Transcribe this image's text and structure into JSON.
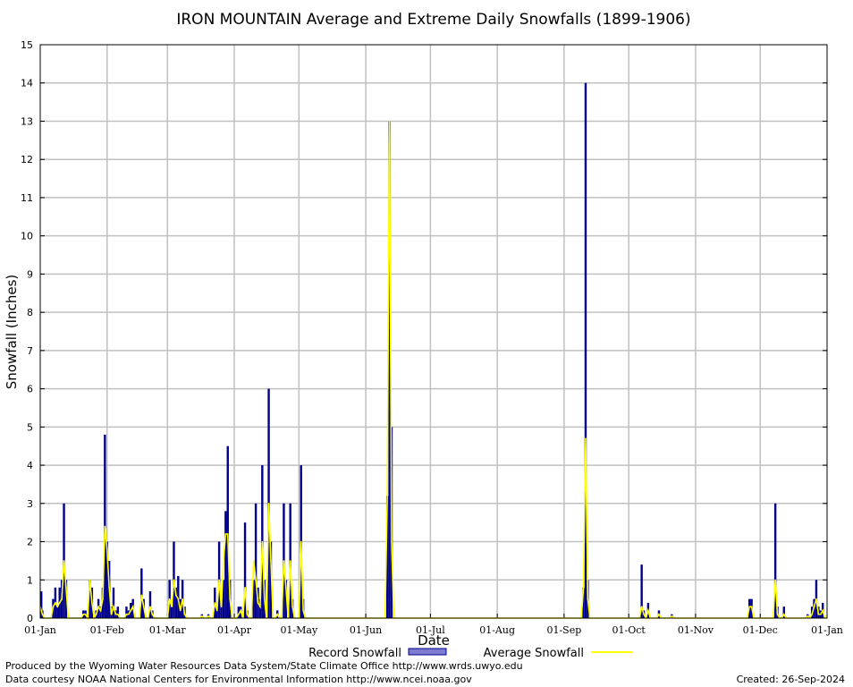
{
  "chart_data": {
    "type": "bar",
    "title": "IRON MOUNTAIN Average and Extreme Daily Snowfalls (1899-1906)",
    "xlabel": "Date",
    "ylabel": "Snowfall (Inches)",
    "ylim": [
      0,
      15
    ],
    "yticks": [
      0,
      1,
      2,
      3,
      4,
      5,
      6,
      7,
      8,
      9,
      10,
      11,
      12,
      13,
      14,
      15
    ],
    "xticks": [
      "01-Jan",
      "01-Feb",
      "01-Mar",
      "01-Apr",
      "01-May",
      "01-Jun",
      "01-Jul",
      "01-Aug",
      "01-Sep",
      "01-Oct",
      "01-Nov",
      "01-Dec",
      "01-Jan"
    ],
    "xtick_days": [
      1,
      32,
      60,
      91,
      121,
      152,
      182,
      213,
      244,
      274,
      305,
      335,
      366
    ],
    "xlim_days": [
      1,
      366
    ],
    "grid": true,
    "legend_position": "bottom",
    "series": [
      {
        "name": "Record Snowfall",
        "style": "bars",
        "color": "#00008b",
        "points": [
          [
            1,
            0.7
          ],
          [
            2,
            0.2
          ],
          [
            7,
            0.5
          ],
          [
            8,
            0.8
          ],
          [
            9,
            0.3
          ],
          [
            10,
            0.8
          ],
          [
            11,
            1.0
          ],
          [
            12,
            3.0
          ],
          [
            13,
            1.0
          ],
          [
            21,
            0.2
          ],
          [
            22,
            0.2
          ],
          [
            24,
            1.0
          ],
          [
            25,
            0.8
          ],
          [
            27,
            0.2
          ],
          [
            28,
            0.5
          ],
          [
            29,
            0.3
          ],
          [
            30,
            0.8
          ],
          [
            31,
            4.8
          ],
          [
            32,
            2.0
          ],
          [
            33,
            1.5
          ],
          [
            34,
            0.3
          ],
          [
            35,
            0.8
          ],
          [
            36,
            0.2
          ],
          [
            37,
            0.3
          ],
          [
            41,
            0.3
          ],
          [
            42,
            0.2
          ],
          [
            43,
            0.4
          ],
          [
            44,
            0.5
          ],
          [
            48,
            1.3
          ],
          [
            49,
            0.5
          ],
          [
            52,
            0.7
          ],
          [
            53,
            0.2
          ],
          [
            61,
            1.0
          ],
          [
            62,
            0.3
          ],
          [
            63,
            2.0
          ],
          [
            64,
            0.8
          ],
          [
            65,
            1.1
          ],
          [
            66,
            0.5
          ],
          [
            67,
            1.0
          ],
          [
            68,
            0.3
          ],
          [
            76,
            0.1
          ],
          [
            79,
            0.1
          ],
          [
            82,
            0.8
          ],
          [
            83,
            0.3
          ],
          [
            84,
            2.0
          ],
          [
            85,
            0.5
          ],
          [
            86,
            1.0
          ],
          [
            87,
            2.8
          ],
          [
            88,
            4.5
          ],
          [
            89,
            1.0
          ],
          [
            93,
            0.3
          ],
          [
            94,
            0.3
          ],
          [
            96,
            2.5
          ],
          [
            97,
            0.2
          ],
          [
            100,
            1.0
          ],
          [
            101,
            3.0
          ],
          [
            102,
            0.8
          ],
          [
            103,
            0.5
          ],
          [
            104,
            4.0
          ],
          [
            105,
            1.0
          ],
          [
            107,
            6.0
          ],
          [
            108,
            2.0
          ],
          [
            111,
            0.2
          ],
          [
            114,
            3.0
          ],
          [
            115,
            1.0
          ],
          [
            117,
            3.0
          ],
          [
            118,
            0.5
          ],
          [
            122,
            4.0
          ],
          [
            123,
            0.5
          ],
          [
            162,
            3.2
          ],
          [
            163,
            13.0
          ],
          [
            164,
            5.0
          ],
          [
            253,
            0.8
          ],
          [
            254,
            14.0
          ],
          [
            255,
            1.0
          ],
          [
            280,
            1.4
          ],
          [
            281,
            0.2
          ],
          [
            283,
            0.4
          ],
          [
            288,
            0.2
          ],
          [
            294,
            0.1
          ],
          [
            330,
            0.5
          ],
          [
            331,
            0.5
          ],
          [
            342,
            3.0
          ],
          [
            343,
            0.3
          ],
          [
            346,
            0.3
          ],
          [
            357,
            0.1
          ],
          [
            359,
            0.3
          ],
          [
            360,
            0.5
          ],
          [
            361,
            1.0
          ],
          [
            362,
            0.3
          ],
          [
            363,
            0.2
          ],
          [
            364,
            0.4
          ]
        ]
      },
      {
        "name": "Average Snowfall",
        "style": "line",
        "color": "#ffff00",
        "points": [
          [
            1,
            0.3
          ],
          [
            2,
            0.1
          ],
          [
            7,
            0.3
          ],
          [
            8,
            0.4
          ],
          [
            9,
            0.3
          ],
          [
            10,
            0.4
          ],
          [
            11,
            0.5
          ],
          [
            12,
            1.5
          ],
          [
            13,
            0.8
          ],
          [
            21,
            0.1
          ],
          [
            22,
            0.1
          ],
          [
            24,
            1.0
          ],
          [
            25,
            0.4
          ],
          [
            27,
            0.1
          ],
          [
            28,
            0.3
          ],
          [
            29,
            0.2
          ],
          [
            30,
            0.5
          ],
          [
            31,
            2.4
          ],
          [
            32,
            1.8
          ],
          [
            33,
            0.8
          ],
          [
            34,
            0.1
          ],
          [
            35,
            0.3
          ],
          [
            36,
            0.1
          ],
          [
            37,
            0.1
          ],
          [
            41,
            0.1
          ],
          [
            42,
            0.1
          ],
          [
            43,
            0.2
          ],
          [
            44,
            0.3
          ],
          [
            48,
            0.6
          ],
          [
            49,
            0.3
          ],
          [
            52,
            0.3
          ],
          [
            53,
            0.1
          ],
          [
            61,
            0.5
          ],
          [
            62,
            0.3
          ],
          [
            63,
            1.0
          ],
          [
            64,
            0.6
          ],
          [
            65,
            0.5
          ],
          [
            66,
            0.2
          ],
          [
            67,
            0.5
          ],
          [
            68,
            0.1
          ],
          [
            76,
            0.05
          ],
          [
            79,
            0.05
          ],
          [
            82,
            0.4
          ],
          [
            83,
            0.2
          ],
          [
            84,
            1.0
          ],
          [
            85,
            0.3
          ],
          [
            86,
            1.5
          ],
          [
            87,
            2.2
          ],
          [
            88,
            2.2
          ],
          [
            89,
            0.5
          ],
          [
            93,
            0.1
          ],
          [
            94,
            0.2
          ],
          [
            96,
            0.8
          ],
          [
            97,
            0.1
          ],
          [
            100,
            1.5
          ],
          [
            101,
            1.0
          ],
          [
            102,
            0.4
          ],
          [
            103,
            0.3
          ],
          [
            104,
            2.0
          ],
          [
            105,
            0.5
          ],
          [
            107,
            3.0
          ],
          [
            108,
            1.5
          ],
          [
            111,
            0.1
          ],
          [
            114,
            1.5
          ],
          [
            115,
            0.8
          ],
          [
            117,
            1.5
          ],
          [
            118,
            0.3
          ],
          [
            122,
            2.0
          ],
          [
            123,
            0.2
          ],
          [
            162,
            3.2
          ],
          [
            163,
            13.0
          ],
          [
            164,
            2.0
          ],
          [
            253,
            0.8
          ],
          [
            254,
            4.7
          ],
          [
            255,
            0.5
          ],
          [
            280,
            0.3
          ],
          [
            281,
            0.1
          ],
          [
            283,
            0.2
          ],
          [
            288,
            0.1
          ],
          [
            294,
            0.05
          ],
          [
            330,
            0.3
          ],
          [
            331,
            0.3
          ],
          [
            342,
            1.0
          ],
          [
            343,
            0.1
          ],
          [
            346,
            0.1
          ],
          [
            357,
            0.05
          ],
          [
            359,
            0.1
          ],
          [
            360,
            0.3
          ],
          [
            361,
            0.5
          ],
          [
            362,
            0.1
          ],
          [
            363,
            0.1
          ],
          [
            364,
            0.2
          ]
        ]
      }
    ]
  },
  "footer": {
    "line1": "Produced by the Wyoming Water Resources Data System/State Climate Office http://www.wrds.uwyo.edu",
    "line2": "Data courtesy NOAA National Centers for Environmental Information http://www.ncei.noaa.gov",
    "created": "Created:  26-Sep-2024"
  }
}
